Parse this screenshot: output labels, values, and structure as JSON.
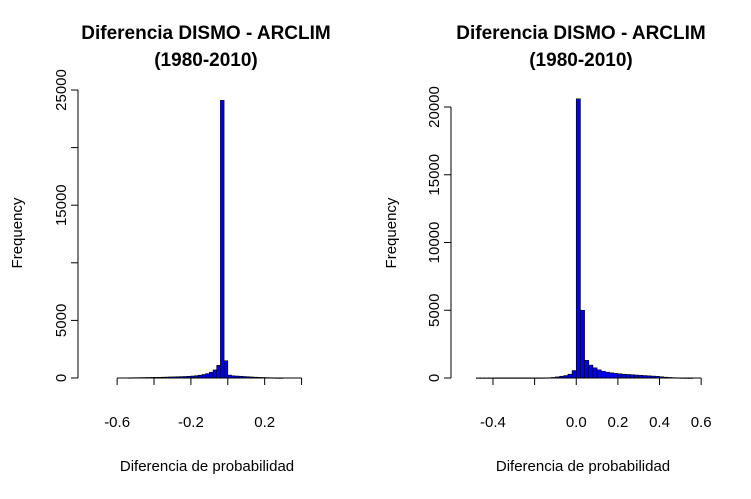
{
  "chart_data": [
    {
      "type": "bar",
      "title": "Diferencia DISMO - ARCLIM",
      "subtitle": "(1980-2010)",
      "xlabel": "Diferencia de probabilidad",
      "ylabel": "Frequency",
      "x_ticks": [
        -0.6,
        -0.4,
        -0.2,
        0.0,
        0.2,
        0.4
      ],
      "x_tick_labels": [
        "-0.6",
        "",
        "-0.2",
        "",
        "0.2",
        ""
      ],
      "y_ticks": [
        0,
        5000,
        10000,
        15000,
        20000,
        25000
      ],
      "y_tick_labels": [
        "0",
        "5000",
        "",
        "15000",
        "",
        "25000"
      ],
      "xlim": [
        -0.72,
        0.5
      ],
      "ylim": [
        0,
        25000
      ],
      "bar_color": "#0000ee",
      "bins": [
        {
          "x0": -0.54,
          "x1": -0.52,
          "value": 20
        },
        {
          "x0": -0.52,
          "x1": -0.5,
          "value": 25
        },
        {
          "x0": -0.5,
          "x1": -0.48,
          "value": 30
        },
        {
          "x0": -0.48,
          "x1": -0.46,
          "value": 35
        },
        {
          "x0": -0.46,
          "x1": -0.44,
          "value": 40
        },
        {
          "x0": -0.44,
          "x1": -0.42,
          "value": 45
        },
        {
          "x0": -0.42,
          "x1": -0.4,
          "value": 50
        },
        {
          "x0": -0.4,
          "x1": -0.38,
          "value": 55
        },
        {
          "x0": -0.38,
          "x1": -0.36,
          "value": 60
        },
        {
          "x0": -0.36,
          "x1": -0.34,
          "value": 70
        },
        {
          "x0": -0.34,
          "x1": -0.32,
          "value": 80
        },
        {
          "x0": -0.32,
          "x1": -0.3,
          "value": 90
        },
        {
          "x0": -0.3,
          "x1": -0.28,
          "value": 100
        },
        {
          "x0": -0.28,
          "x1": -0.26,
          "value": 110
        },
        {
          "x0": -0.26,
          "x1": -0.24,
          "value": 120
        },
        {
          "x0": -0.24,
          "x1": -0.22,
          "value": 130
        },
        {
          "x0": -0.22,
          "x1": -0.2,
          "value": 150
        },
        {
          "x0": -0.2,
          "x1": -0.18,
          "value": 170
        },
        {
          "x0": -0.18,
          "x1": -0.16,
          "value": 200
        },
        {
          "x0": -0.16,
          "x1": -0.14,
          "value": 240
        },
        {
          "x0": -0.14,
          "x1": -0.12,
          "value": 300
        },
        {
          "x0": -0.12,
          "x1": -0.1,
          "value": 380
        },
        {
          "x0": -0.1,
          "x1": -0.08,
          "value": 500
        },
        {
          "x0": -0.08,
          "x1": -0.06,
          "value": 700
        },
        {
          "x0": -0.06,
          "x1": -0.04,
          "value": 1100
        },
        {
          "x0": -0.04,
          "x1": -0.02,
          "value": 24100
        },
        {
          "x0": -0.02,
          "x1": 0.0,
          "value": 1500
        },
        {
          "x0": 0.0,
          "x1": 0.02,
          "value": 250
        },
        {
          "x0": 0.02,
          "x1": 0.04,
          "value": 190
        },
        {
          "x0": 0.04,
          "x1": 0.06,
          "value": 170
        },
        {
          "x0": 0.06,
          "x1": 0.08,
          "value": 150
        },
        {
          "x0": 0.08,
          "x1": 0.1,
          "value": 130
        },
        {
          "x0": 0.1,
          "x1": 0.12,
          "value": 110
        },
        {
          "x0": 0.12,
          "x1": 0.14,
          "value": 90
        },
        {
          "x0": 0.14,
          "x1": 0.16,
          "value": 70
        },
        {
          "x0": 0.16,
          "x1": 0.18,
          "value": 55
        },
        {
          "x0": 0.18,
          "x1": 0.2,
          "value": 45
        },
        {
          "x0": 0.2,
          "x1": 0.22,
          "value": 35
        },
        {
          "x0": 0.22,
          "x1": 0.24,
          "value": 25
        },
        {
          "x0": 0.24,
          "x1": 0.26,
          "value": 20
        },
        {
          "x0": 0.26,
          "x1": 0.28,
          "value": 12
        },
        {
          "x0": 0.28,
          "x1": 0.3,
          "value": 8
        }
      ]
    },
    {
      "type": "bar",
      "title": "Diferencia DISMO - ARCLIM",
      "subtitle": "(1980-2010)",
      "xlabel": "Diferencia de probabilidad",
      "ylabel": "Frequency",
      "x_ticks": [
        -0.4,
        -0.2,
        0.0,
        0.2,
        0.4,
        0.6
      ],
      "x_tick_labels": [
        "-0.4",
        "",
        "0.0",
        "0.2",
        "0.4",
        "0.6"
      ],
      "y_ticks": [
        0,
        5000,
        10000,
        15000,
        20000
      ],
      "y_tick_labels": [
        "0",
        "5000",
        "10000",
        "15000",
        "20000"
      ],
      "xlim": [
        -0.52,
        0.58
      ],
      "ylim": [
        0,
        20000
      ],
      "bar_color": "#0000ee",
      "bins": [
        {
          "x0": -0.48,
          "x1": -0.46,
          "value": 8
        },
        {
          "x0": -0.46,
          "x1": -0.44,
          "value": 8
        },
        {
          "x0": -0.44,
          "x1": -0.42,
          "value": 8
        },
        {
          "x0": -0.42,
          "x1": -0.4,
          "value": 8
        },
        {
          "x0": -0.4,
          "x1": -0.38,
          "value": 8
        },
        {
          "x0": -0.38,
          "x1": -0.36,
          "value": 8
        },
        {
          "x0": -0.36,
          "x1": -0.34,
          "value": 8
        },
        {
          "x0": -0.34,
          "x1": -0.32,
          "value": 8
        },
        {
          "x0": -0.32,
          "x1": -0.3,
          "value": 8
        },
        {
          "x0": -0.3,
          "x1": -0.28,
          "value": 8
        },
        {
          "x0": -0.28,
          "x1": -0.26,
          "value": 8
        },
        {
          "x0": -0.26,
          "x1": -0.24,
          "value": 8
        },
        {
          "x0": -0.24,
          "x1": -0.22,
          "value": 8
        },
        {
          "x0": -0.22,
          "x1": -0.2,
          "value": 8
        },
        {
          "x0": -0.2,
          "x1": -0.18,
          "value": 8
        },
        {
          "x0": -0.18,
          "x1": -0.16,
          "value": 10
        },
        {
          "x0": -0.16,
          "x1": -0.14,
          "value": 15
        },
        {
          "x0": -0.14,
          "x1": -0.12,
          "value": 20
        },
        {
          "x0": -0.12,
          "x1": -0.1,
          "value": 40
        },
        {
          "x0": -0.1,
          "x1": -0.08,
          "value": 80
        },
        {
          "x0": -0.08,
          "x1": -0.06,
          "value": 130
        },
        {
          "x0": -0.06,
          "x1": -0.04,
          "value": 180
        },
        {
          "x0": -0.04,
          "x1": -0.02,
          "value": 280
        },
        {
          "x0": -0.02,
          "x1": 0.0,
          "value": 550
        },
        {
          "x0": 0.0,
          "x1": 0.02,
          "value": 20600
        },
        {
          "x0": 0.02,
          "x1": 0.04,
          "value": 5000
        },
        {
          "x0": 0.04,
          "x1": 0.06,
          "value": 1300
        },
        {
          "x0": 0.06,
          "x1": 0.08,
          "value": 950
        },
        {
          "x0": 0.08,
          "x1": 0.1,
          "value": 750
        },
        {
          "x0": 0.1,
          "x1": 0.12,
          "value": 600
        },
        {
          "x0": 0.12,
          "x1": 0.14,
          "value": 500
        },
        {
          "x0": 0.14,
          "x1": 0.16,
          "value": 430
        },
        {
          "x0": 0.16,
          "x1": 0.18,
          "value": 380
        },
        {
          "x0": 0.18,
          "x1": 0.2,
          "value": 340
        },
        {
          "x0": 0.2,
          "x1": 0.22,
          "value": 310
        },
        {
          "x0": 0.22,
          "x1": 0.24,
          "value": 280
        },
        {
          "x0": 0.24,
          "x1": 0.26,
          "value": 260
        },
        {
          "x0": 0.26,
          "x1": 0.28,
          "value": 240
        },
        {
          "x0": 0.28,
          "x1": 0.3,
          "value": 220
        },
        {
          "x0": 0.3,
          "x1": 0.32,
          "value": 200
        },
        {
          "x0": 0.32,
          "x1": 0.34,
          "value": 180
        },
        {
          "x0": 0.34,
          "x1": 0.36,
          "value": 160
        },
        {
          "x0": 0.36,
          "x1": 0.38,
          "value": 140
        },
        {
          "x0": 0.38,
          "x1": 0.4,
          "value": 120
        },
        {
          "x0": 0.4,
          "x1": 0.42,
          "value": 90
        },
        {
          "x0": 0.42,
          "x1": 0.44,
          "value": 60
        },
        {
          "x0": 0.44,
          "x1": 0.46,
          "value": 40
        },
        {
          "x0": 0.46,
          "x1": 0.48,
          "value": 25
        },
        {
          "x0": 0.48,
          "x1": 0.5,
          "value": 15
        },
        {
          "x0": 0.5,
          "x1": 0.52,
          "value": 10
        },
        {
          "x0": 0.52,
          "x1": 0.54,
          "value": 6
        },
        {
          "x0": 0.54,
          "x1": 0.56,
          "value": 4
        }
      ]
    }
  ]
}
